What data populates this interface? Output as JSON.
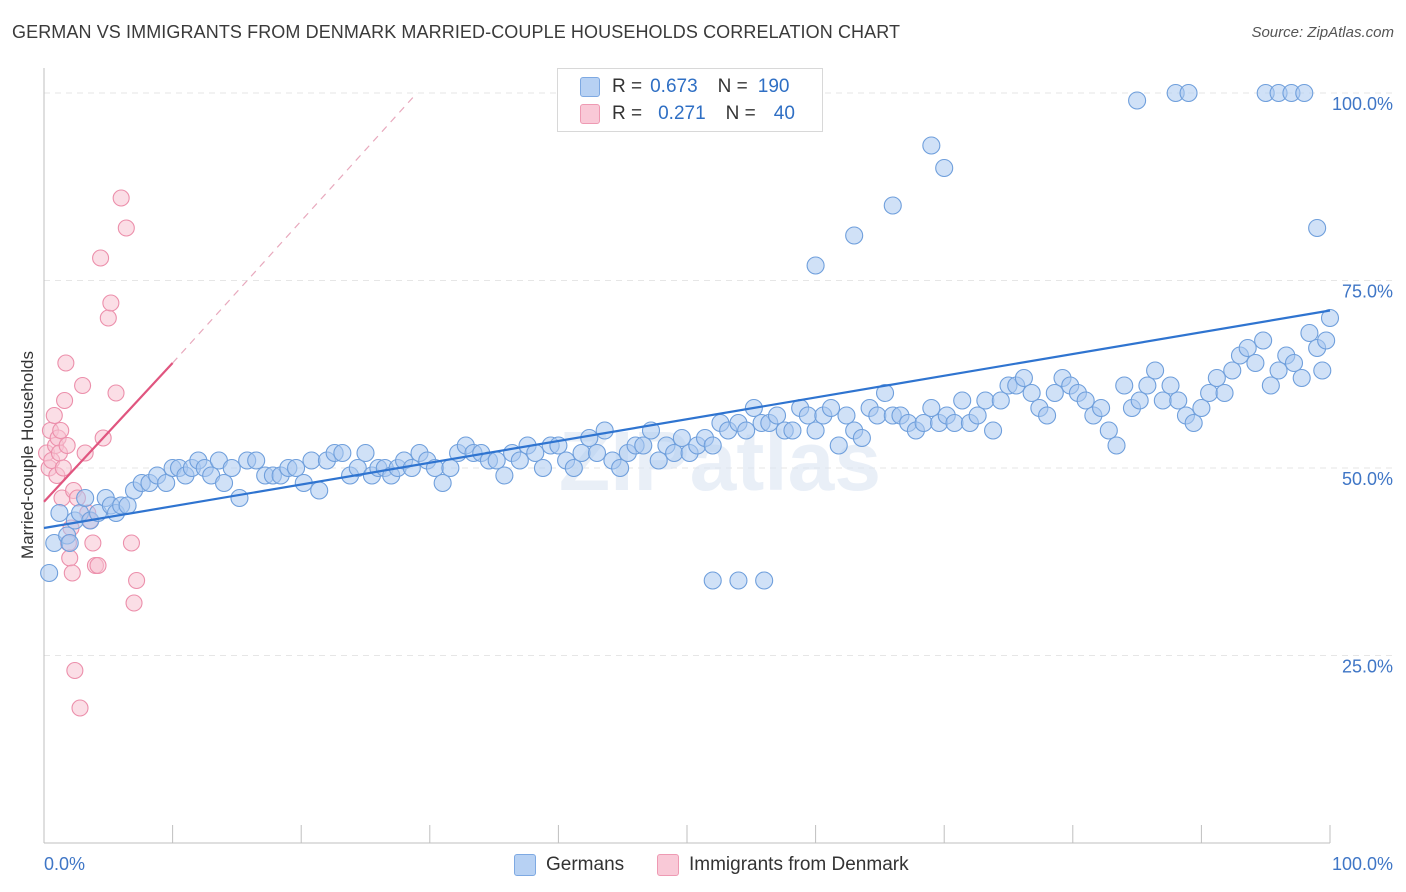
{
  "title": "GERMAN VS IMMIGRANTS FROM DENMARK MARRIED-COUPLE HOUSEHOLDS CORRELATION CHART",
  "source": "Source: ZipAtlas.com",
  "watermark": "ZIPatlas",
  "legend_top": {
    "rows": [
      {
        "r_label": "R =",
        "r_value": "0.673",
        "n_label": "N =",
        "n_value": "190",
        "color": "#9ec2ef"
      },
      {
        "r_label": "R =",
        "r_value": "0.271",
        "n_label": "N =",
        "n_value": "40",
        "color": "#f5b8cb"
      }
    ]
  },
  "legend_bottom": {
    "items": [
      {
        "label": "Germans",
        "color": "#9ec2ef"
      },
      {
        "label": "Immigrants from Denmark",
        "color": "#f5b8cb"
      }
    ]
  },
  "colors": {
    "blue_fill": "#aac9f0",
    "blue_stroke": "#6f9fdc",
    "blue_line": "#2f74d0",
    "pink_fill": "#f7c2d2",
    "pink_stroke": "#ec8fab",
    "pink_line": "#e0557f",
    "axis_label": "#3f76c6",
    "grid": "#e6e6e6"
  },
  "chart_data": {
    "type": "scatter",
    "title": "GERMAN VS IMMIGRANTS FROM DENMARK MARRIED-COUPLE HOUSEHOLDS CORRELATION CHART",
    "xlabel": "",
    "ylabel": "Married-couple Households",
    "xlim": [
      0,
      100
    ],
    "ylim": [
      0,
      102
    ],
    "x_tick_labels": [
      "0.0%",
      "100.0%"
    ],
    "y_ticks": [
      25,
      50,
      75,
      100
    ],
    "y_tick_labels": [
      "25.0%",
      "50.0%",
      "75.0%",
      "100.0%"
    ],
    "grid": "horizontal dashed",
    "legend": "top-center and bottom",
    "series": [
      {
        "name": "Germans",
        "r": 0.673,
        "n": 190,
        "trend": {
          "x0": 0,
          "y0": 42.0,
          "x1": 100,
          "y1": 71.0
        },
        "points": [
          [
            0.4,
            36
          ],
          [
            0.8,
            40
          ],
          [
            1.2,
            44
          ],
          [
            1.8,
            41
          ],
          [
            2,
            40
          ],
          [
            2.4,
            43
          ],
          [
            2.8,
            44
          ],
          [
            3.2,
            46
          ],
          [
            3.6,
            43
          ],
          [
            4.2,
            44
          ],
          [
            4.8,
            46
          ],
          [
            5.2,
            45
          ],
          [
            5.6,
            44
          ],
          [
            6,
            45
          ],
          [
            6.5,
            45
          ],
          [
            7,
            47
          ],
          [
            7.6,
            48
          ],
          [
            8.2,
            48
          ],
          [
            8.8,
            49
          ],
          [
            9.5,
            48
          ],
          [
            10,
            50
          ],
          [
            10.5,
            50
          ],
          [
            11,
            49
          ],
          [
            11.5,
            50
          ],
          [
            12,
            51
          ],
          [
            12.5,
            50
          ],
          [
            13,
            49
          ],
          [
            13.6,
            51
          ],
          [
            14,
            48
          ],
          [
            14.6,
            50
          ],
          [
            15.2,
            46
          ],
          [
            15.8,
            51
          ],
          [
            16.5,
            51
          ],
          [
            17.2,
            49
          ],
          [
            17.8,
            49
          ],
          [
            18.4,
            49
          ],
          [
            19,
            50
          ],
          [
            19.6,
            50
          ],
          [
            20.2,
            48
          ],
          [
            20.8,
            51
          ],
          [
            21.4,
            47
          ],
          [
            22,
            51
          ],
          [
            22.6,
            52
          ],
          [
            23.2,
            52
          ],
          [
            23.8,
            49
          ],
          [
            24.4,
            50
          ],
          [
            25,
            52
          ],
          [
            25.5,
            49
          ],
          [
            26,
            50
          ],
          [
            26.5,
            50
          ],
          [
            27,
            49
          ],
          [
            27.5,
            50
          ],
          [
            28,
            51
          ],
          [
            28.6,
            50
          ],
          [
            29.2,
            52
          ],
          [
            29.8,
            51
          ],
          [
            30.4,
            50
          ],
          [
            31,
            48
          ],
          [
            31.6,
            50
          ],
          [
            32.2,
            52
          ],
          [
            32.8,
            53
          ],
          [
            33.4,
            52
          ],
          [
            34,
            52
          ],
          [
            34.6,
            51
          ],
          [
            35.2,
            51
          ],
          [
            35.8,
            49
          ],
          [
            36.4,
            52
          ],
          [
            37,
            51
          ],
          [
            37.6,
            53
          ],
          [
            38.2,
            52
          ],
          [
            38.8,
            50
          ],
          [
            39.4,
            53
          ],
          [
            40,
            53
          ],
          [
            40.6,
            51
          ],
          [
            41.2,
            50
          ],
          [
            41.8,
            52
          ],
          [
            42.4,
            54
          ],
          [
            43,
            52
          ],
          [
            43.6,
            55
          ],
          [
            44.2,
            51
          ],
          [
            44.8,
            50
          ],
          [
            45.4,
            52
          ],
          [
            46,
            53
          ],
          [
            46.6,
            53
          ],
          [
            47.2,
            55
          ],
          [
            47.8,
            51
          ],
          [
            48.4,
            53
          ],
          [
            49,
            52
          ],
          [
            49.6,
            54
          ],
          [
            50.2,
            52
          ],
          [
            50.8,
            53
          ],
          [
            51.4,
            54
          ],
          [
            52,
            53
          ],
          [
            52.6,
            56
          ],
          [
            53.2,
            55
          ],
          [
            54,
            56
          ],
          [
            54.6,
            55
          ],
          [
            55.2,
            58
          ],
          [
            55.8,
            56
          ],
          [
            56.4,
            56
          ],
          [
            57,
            57
          ],
          [
            57.6,
            55
          ],
          [
            58.2,
            55
          ],
          [
            58.8,
            58
          ],
          [
            59.4,
            57
          ],
          [
            60,
            55
          ],
          [
            60.6,
            57
          ],
          [
            61.2,
            58
          ],
          [
            61.8,
            53
          ],
          [
            62.4,
            57
          ],
          [
            63,
            55
          ],
          [
            63.6,
            54
          ],
          [
            64.2,
            58
          ],
          [
            64.8,
            57
          ],
          [
            65.4,
            60
          ],
          [
            66,
            57
          ],
          [
            66.6,
            57
          ],
          [
            67.2,
            56
          ],
          [
            67.8,
            55
          ],
          [
            68.4,
            56
          ],
          [
            69,
            58
          ],
          [
            69.6,
            56
          ],
          [
            70.2,
            57
          ],
          [
            70.8,
            56
          ],
          [
            71.4,
            59
          ],
          [
            72,
            56
          ],
          [
            72.6,
            57
          ],
          [
            73.2,
            59
          ],
          [
            73.8,
            55
          ],
          [
            74.4,
            59
          ],
          [
            75,
            61
          ],
          [
            75.6,
            61
          ],
          [
            76.2,
            62
          ],
          [
            76.8,
            60
          ],
          [
            77.4,
            58
          ],
          [
            78,
            57
          ],
          [
            78.6,
            60
          ],
          [
            79.2,
            62
          ],
          [
            79.8,
            61
          ],
          [
            80.4,
            60
          ],
          [
            81,
            59
          ],
          [
            81.6,
            57
          ],
          [
            82.2,
            58
          ],
          [
            82.8,
            55
          ],
          [
            83.4,
            53
          ],
          [
            84,
            61
          ],
          [
            84.6,
            58
          ],
          [
            85.2,
            59
          ],
          [
            85.8,
            61
          ],
          [
            86.4,
            63
          ],
          [
            87,
            59
          ],
          [
            87.6,
            61
          ],
          [
            88.2,
            59
          ],
          [
            88.8,
            57
          ],
          [
            89.4,
            56
          ],
          [
            90,
            58
          ],
          [
            90.6,
            60
          ],
          [
            91.2,
            62
          ],
          [
            91.8,
            60
          ],
          [
            92.4,
            63
          ],
          [
            93,
            65
          ],
          [
            93.6,
            66
          ],
          [
            94.2,
            64
          ],
          [
            94.8,
            67
          ],
          [
            95.4,
            61
          ],
          [
            96,
            63
          ],
          [
            96.6,
            65
          ],
          [
            97.2,
            64
          ],
          [
            97.8,
            62
          ],
          [
            98.4,
            68
          ],
          [
            99,
            66
          ],
          [
            99.4,
            63
          ],
          [
            99.7,
            67
          ],
          [
            100,
            70
          ],
          [
            52,
            35
          ],
          [
            54,
            35
          ],
          [
            56,
            35
          ],
          [
            60,
            77
          ],
          [
            63,
            81
          ],
          [
            66,
            85
          ],
          [
            69,
            93
          ],
          [
            70,
            90
          ],
          [
            85,
            99
          ],
          [
            88,
            100
          ],
          [
            89,
            100
          ],
          [
            95,
            100
          ],
          [
            96,
            100
          ],
          [
            97,
            100
          ],
          [
            98,
            100
          ],
          [
            99,
            82
          ]
        ]
      },
      {
        "name": "Immigrants from Denmark",
        "r": 0.271,
        "n": 40,
        "trend": {
          "x0": 0,
          "y0": 45.5,
          "x1": 10,
          "y1": 64.0,
          "ext_x1": 29,
          "ext_y1": 100
        },
        "points": [
          [
            0.2,
            52
          ],
          [
            0.4,
            50
          ],
          [
            0.5,
            55
          ],
          [
            0.6,
            51
          ],
          [
            0.8,
            57
          ],
          [
            0.9,
            53
          ],
          [
            1,
            49
          ],
          [
            1.1,
            54
          ],
          [
            1.2,
            52
          ],
          [
            1.3,
            55
          ],
          [
            1.4,
            46
          ],
          [
            1.5,
            50
          ],
          [
            1.6,
            59
          ],
          [
            1.7,
            64
          ],
          [
            1.8,
            53
          ],
          [
            1.9,
            40
          ],
          [
            2,
            38
          ],
          [
            2.1,
            42
          ],
          [
            2.2,
            36
          ],
          [
            2.3,
            47
          ],
          [
            2.4,
            23
          ],
          [
            2.6,
            46
          ],
          [
            2.8,
            18
          ],
          [
            3,
            61
          ],
          [
            3.2,
            52
          ],
          [
            3.4,
            44
          ],
          [
            3.6,
            43
          ],
          [
            3.8,
            40
          ],
          [
            4,
            37
          ],
          [
            4.2,
            37
          ],
          [
            4.4,
            78
          ],
          [
            4.6,
            54
          ],
          [
            5,
            70
          ],
          [
            5.2,
            72
          ],
          [
            5.6,
            60
          ],
          [
            6,
            86
          ],
          [
            6.4,
            82
          ],
          [
            6.8,
            40
          ],
          [
            7,
            32
          ],
          [
            7.2,
            35
          ]
        ]
      }
    ]
  }
}
